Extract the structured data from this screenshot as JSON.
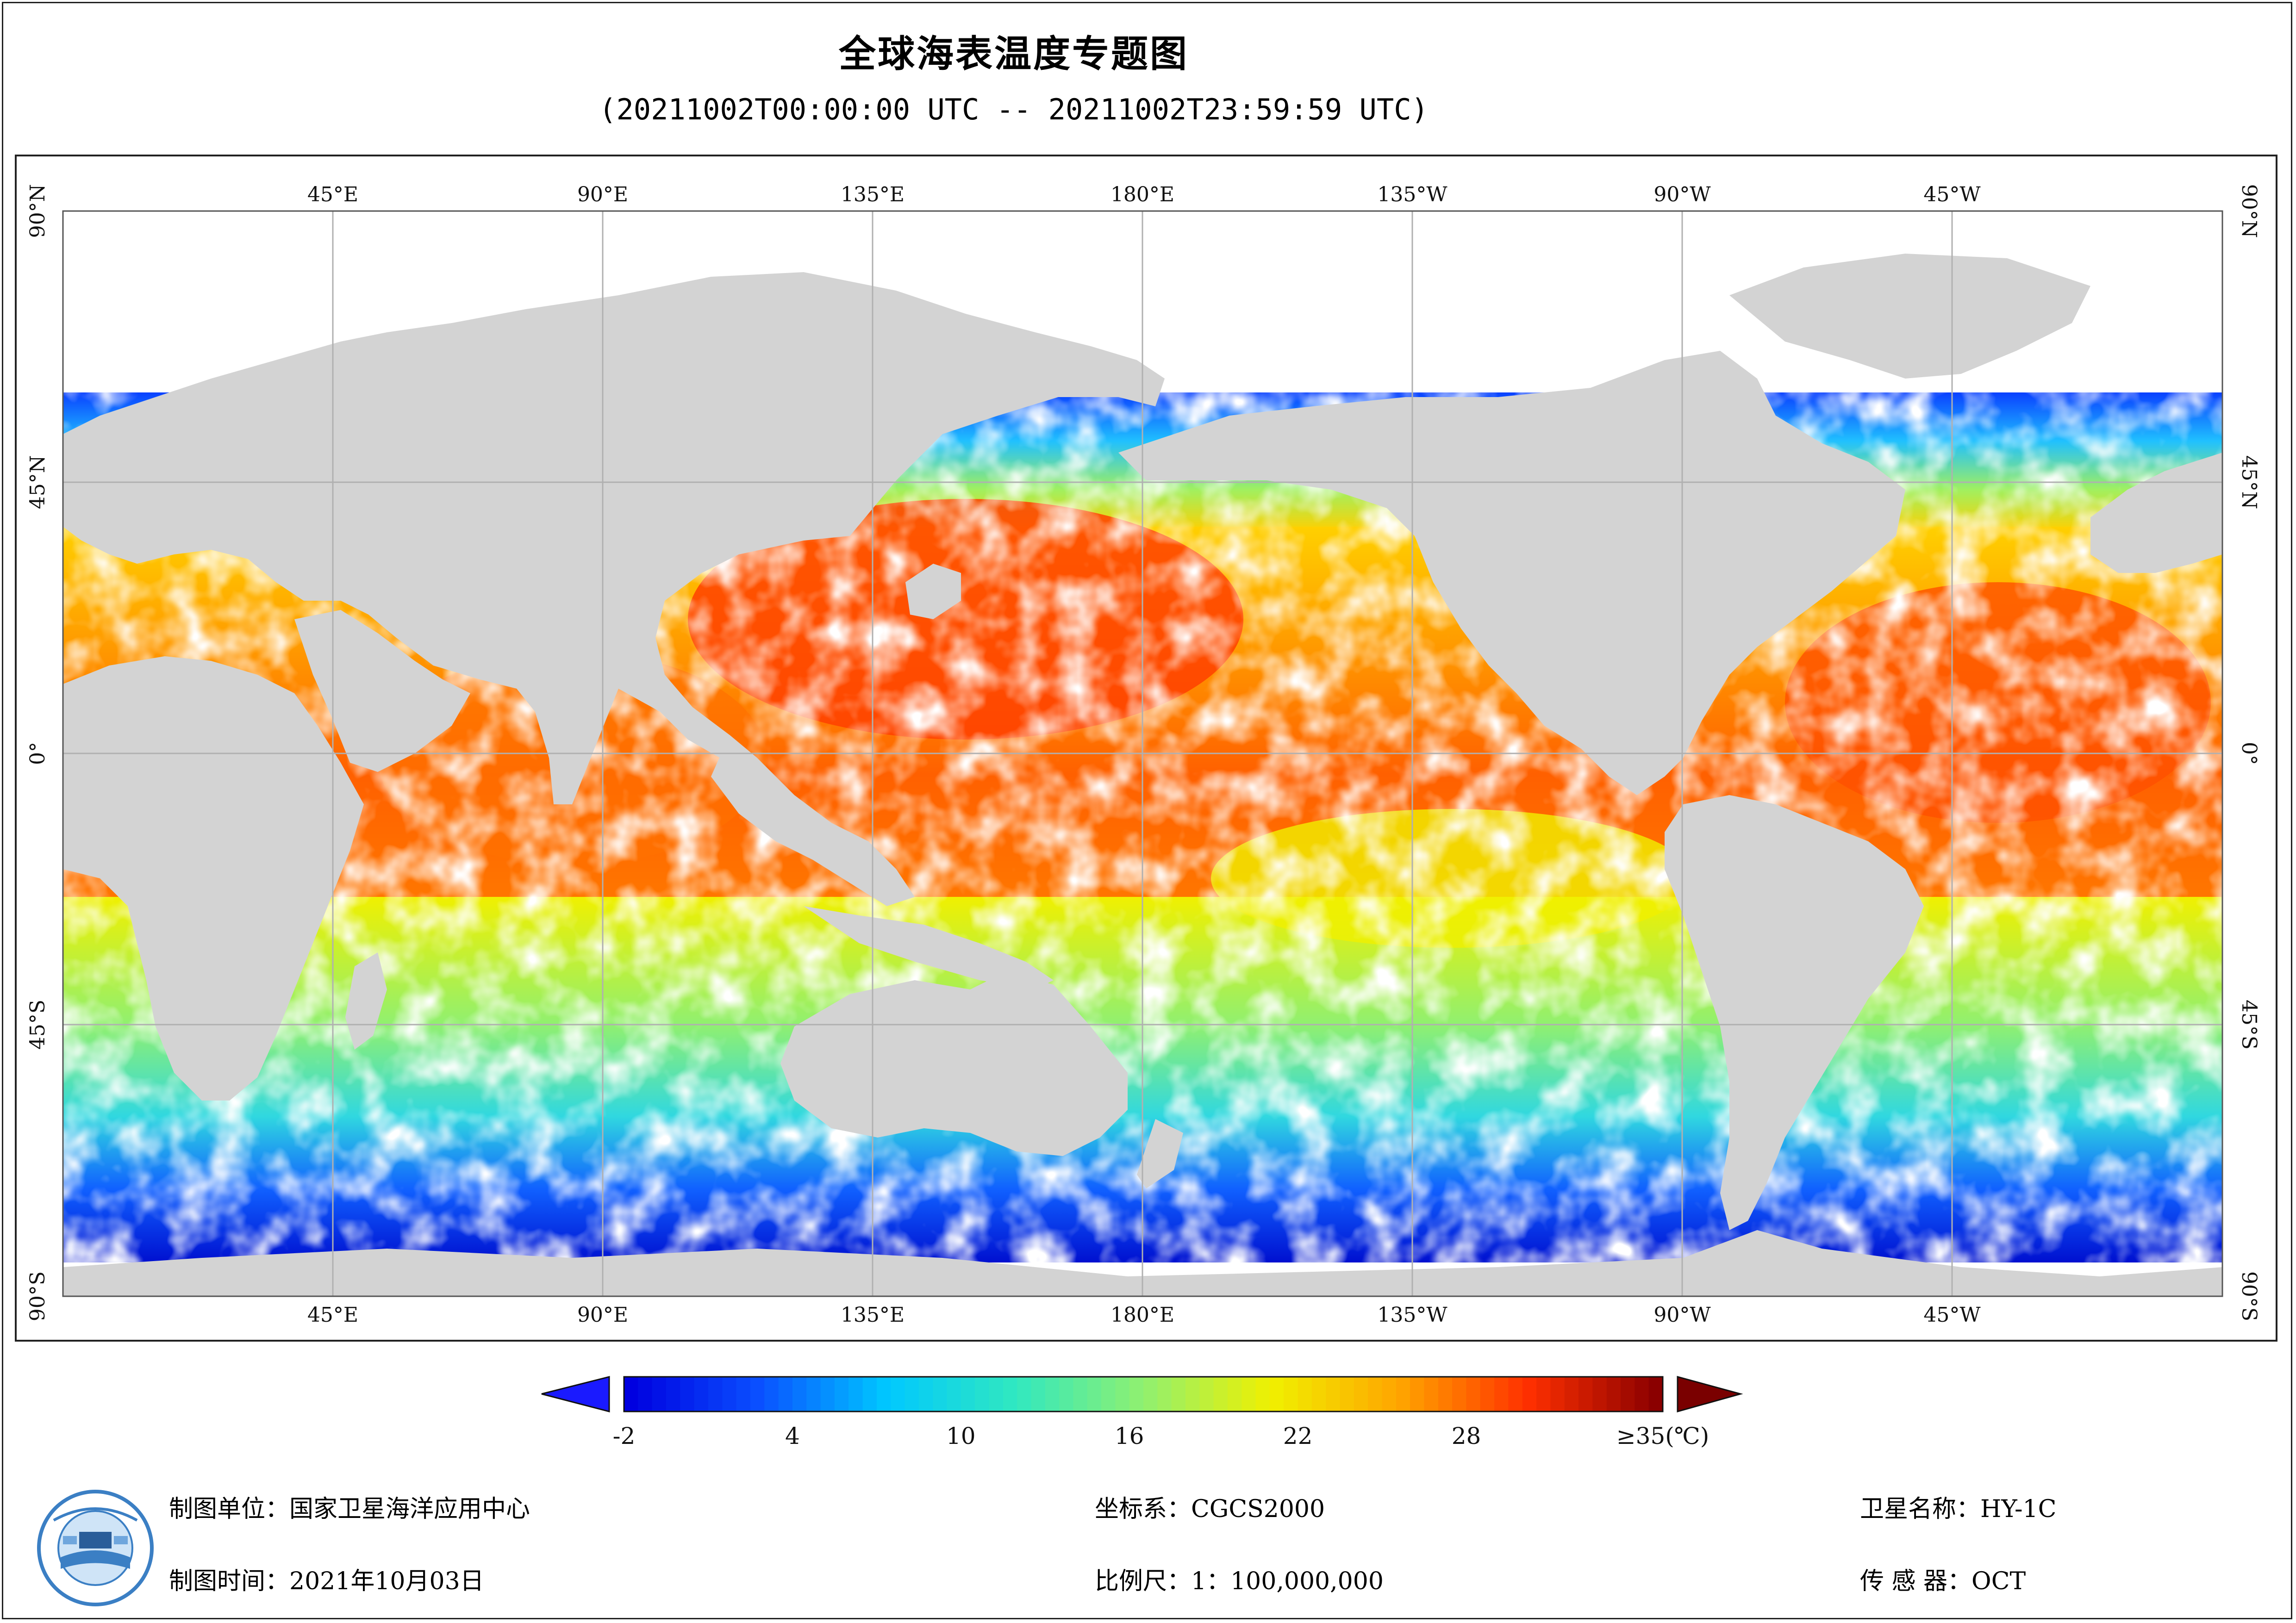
{
  "header": {
    "title": "全球海表温度专题图",
    "subtitle": "(20211002T00:00:00 UTC -- 20211002T23:59:59 UTC)"
  },
  "map": {
    "projection": "equirectangular, centred on 180°",
    "lon_labels": [
      "45°E",
      "90°E",
      "135°E",
      "180°E",
      "135°W",
      "90°W",
      "45°W"
    ],
    "lat_labels_left": [
      "90°N",
      "45°N",
      "0°",
      "45°S",
      "90°S"
    ],
    "lat_labels_right": [
      "90°N",
      "45°N",
      "0°",
      "45°S",
      "90°S"
    ],
    "colors": {
      "land": "#d3d3d3",
      "cloud_nodata": "#ffffff",
      "grid": "#b0b0b0"
    }
  },
  "colorbar": {
    "min_value": -2,
    "max_value": 35,
    "tick_labels": [
      "-2",
      "4",
      "10",
      "16",
      "22",
      "28",
      "≥35(℃)"
    ],
    "tick_values": [
      -2,
      4,
      10,
      16,
      22,
      28,
      35
    ],
    "under_color": "#1a1aff",
    "over_color": "#7a0000",
    "stops": [
      "#0000e0",
      "#0a50ff",
      "#00c8ff",
      "#30e8c0",
      "#90f070",
      "#f0f000",
      "#ffa500",
      "#ff3000",
      "#8b0000"
    ]
  },
  "footer": {
    "producer": "制图单位：国家卫星海洋应用中心",
    "date": "制图时间：2021年10月03日",
    "crs": "坐标系：CGCS2000",
    "scale": "比例尺：1：100,000,000",
    "satellite": "卫星名称：HY-1C",
    "sensor": "传 感 器：OCT"
  },
  "logo": {
    "icon": "nsoas-logo-icon"
  }
}
